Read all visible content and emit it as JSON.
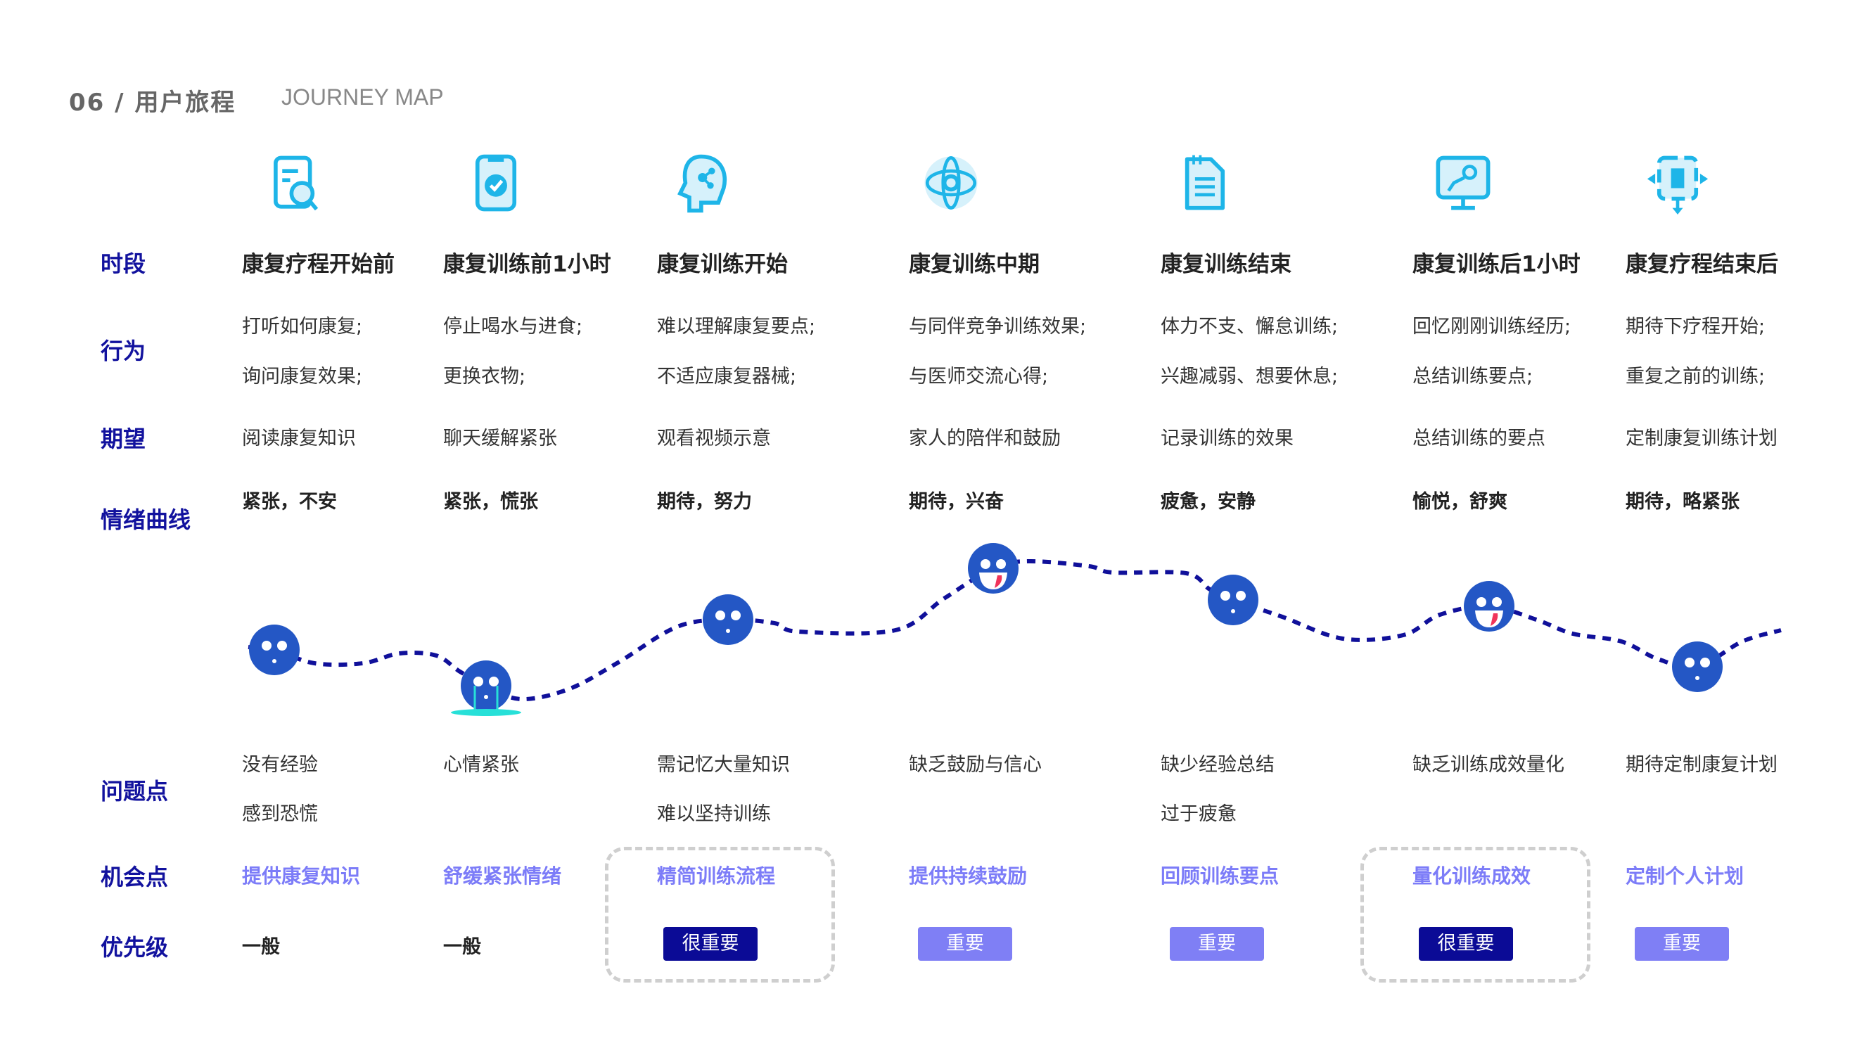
{
  "header": {
    "number": "06",
    "separator": "/",
    "title": "用户旅程",
    "subtitle": "JOURNEY MAP"
  },
  "row_labels": {
    "stage": "时段",
    "action": "行为",
    "expectation": "期望",
    "emotion": "情绪曲线",
    "pain": "问题点",
    "opportunity": "机会点",
    "priority": "优先级"
  },
  "colors": {
    "label": "#12129e",
    "icon": "#1eb5e8",
    "icon_bg": "#d6f1fb",
    "face": "#2457c5",
    "curve": "#10109a",
    "opportunity": "#7c7cf8",
    "badge_high": "#0b0b96",
    "badge_mid": "#7f7ff5"
  },
  "stages": [
    {
      "icon": "document-search-icon",
      "name": "康复疗程开始前",
      "actions": [
        "打听如何康复;",
        "询问康复效果;"
      ],
      "expectation": "阅读康复知识",
      "emotion": "紧张，不安",
      "face": "neutral",
      "pains": [
        "没有经验",
        "感到恐慌"
      ],
      "opportunity": "提供康复知识",
      "priority": "一般",
      "priority_level": "normal",
      "highlight": false
    },
    {
      "icon": "clipboard-check-icon",
      "name": "康复训练前1小时",
      "actions": [
        "停止喝水与进食;",
        "更换衣物;"
      ],
      "expectation": "聊天缓解紧张",
      "emotion": "紧张，慌张",
      "face": "crying",
      "pains": [
        "心情紧张"
      ],
      "opportunity": "舒缓紧张情绪",
      "priority": "一般",
      "priority_level": "normal",
      "highlight": false
    },
    {
      "icon": "head-network-icon",
      "name": "康复训练开始",
      "actions": [
        "难以理解康复要点;",
        "不适应康复器械;"
      ],
      "expectation": "观看视频示意",
      "emotion": "期待，努力",
      "face": "neutral",
      "pains": [
        "需记忆大量知识",
        "难以坚持训练"
      ],
      "opportunity": "精简训练流程",
      "priority": "很重要",
      "priority_level": "high",
      "highlight": true
    },
    {
      "icon": "globe-gear-icon",
      "name": "康复训练中期",
      "actions": [
        "与同伴竞争训练效果;",
        "与医师交流心得;"
      ],
      "expectation": "家人的陪伴和鼓励",
      "emotion": "期待，兴奋",
      "face": "laughing",
      "pains": [
        "缺乏鼓励与信心"
      ],
      "opportunity": "提供持续鼓励",
      "priority": "重要",
      "priority_level": "medium",
      "highlight": false
    },
    {
      "icon": "notepad-list-icon",
      "name": "康复训练结束",
      "actions": [
        "体力不支、懈怠训练;",
        "兴趣减弱、想要休息;"
      ],
      "expectation": "记录训练的效果",
      "emotion": "疲惫，安静",
      "face": "neutral",
      "pains": [
        "缺少经验总结",
        "过于疲惫"
      ],
      "opportunity": "回顾训练要点",
      "priority": "重要",
      "priority_level": "medium",
      "highlight": false
    },
    {
      "icon": "monitor-chart-icon",
      "name": "康复训练后1小时",
      "actions": [
        "回忆刚刚训练经历;",
        "总结训练要点;"
      ],
      "expectation": "总结训练的要点",
      "emotion": "愉悦，舒爽",
      "face": "laughing",
      "pains": [
        "缺乏训练成效量化"
      ],
      "opportunity": "量化训练成效",
      "priority": "很重要",
      "priority_level": "high",
      "highlight": true
    },
    {
      "icon": "expand-arrows-icon",
      "name": "康复疗程结束后",
      "actions": [
        "期待下疗程开始;",
        "重复之前的训练;"
      ],
      "expectation": "定制康复训练计划",
      "emotion": "期待，略紧张",
      "face": "neutral",
      "pains": [
        "期待定制康复计划"
      ],
      "opportunity": "定制个人计划",
      "priority": "重要",
      "priority_level": "medium",
      "highlight": false
    }
  ]
}
